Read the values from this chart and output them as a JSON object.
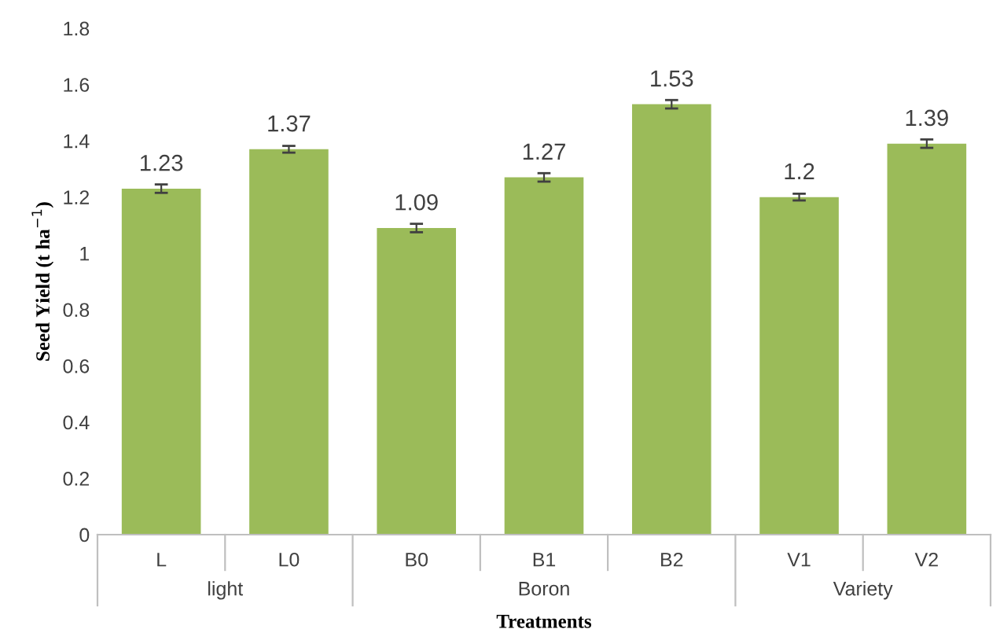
{
  "chart_data": {
    "type": "bar",
    "categories": [
      "L",
      "L0",
      "B0",
      "B1",
      "B2",
      "V1",
      "V2"
    ],
    "values": [
      1.23,
      1.37,
      1.09,
      1.27,
      1.53,
      1.2,
      1.39
    ],
    "errors": [
      0.015,
      0.012,
      0.015,
      0.015,
      0.015,
      0.012,
      0.015
    ],
    "color": "#9bbb59",
    "ylim": [
      0,
      1.8
    ],
    "yticks": [
      0,
      0.2,
      0.4,
      0.6,
      0.8,
      1,
      1.2,
      1.4,
      1.6,
      1.8
    ],
    "data_labels": true,
    "grid": false,
    "legend": false,
    "ylabel": "Seed Yield (t ha$^{−1}$)",
    "xlabel": "Treatments",
    "annotations": [
      "light",
      "Boron",
      "Variety"
    ]
  }
}
